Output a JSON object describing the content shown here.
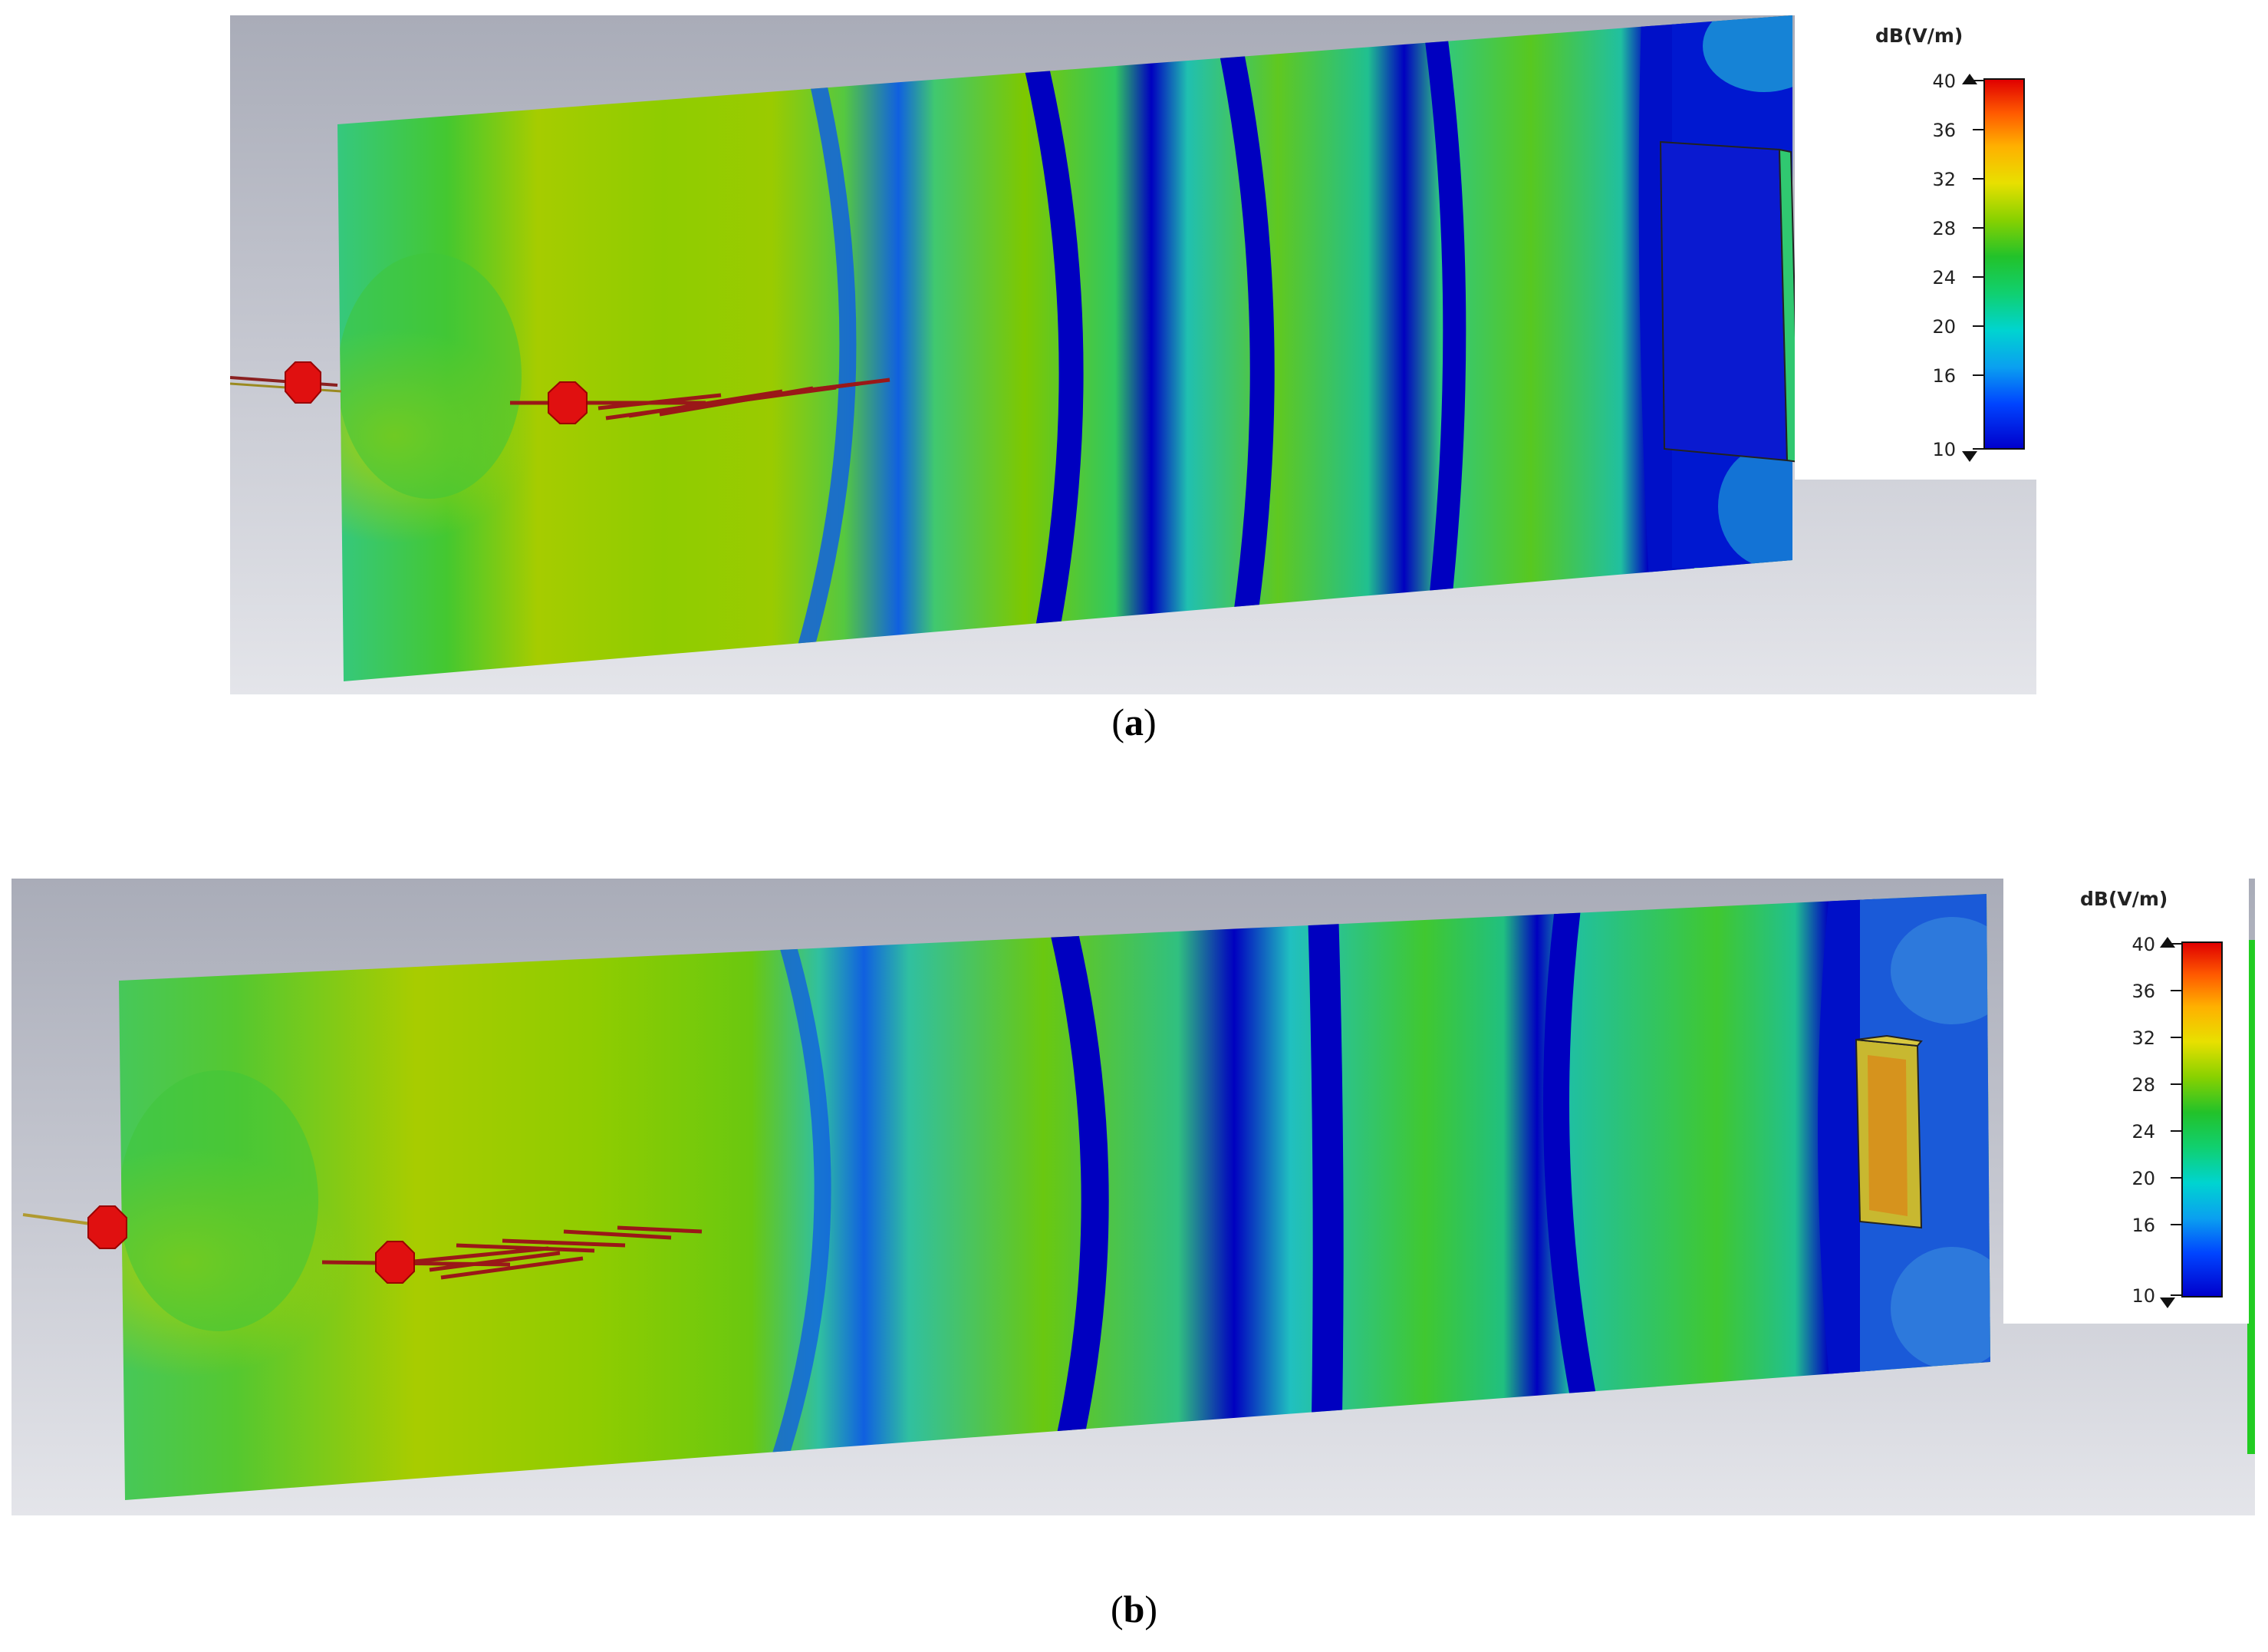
{
  "panels": [
    {
      "id": "a",
      "caption_label": "a",
      "legend": {
        "unit": "dB(V/m)",
        "ticks": [
          "40",
          "36",
          "32",
          "28",
          "24",
          "20",
          "16",
          "10"
        ]
      }
    },
    {
      "id": "b",
      "caption_label": "b",
      "legend": {
        "unit": "dB(V/m)",
        "ticks": [
          "40",
          "36",
          "32",
          "28",
          "24",
          "20",
          "16",
          "10"
        ]
      }
    }
  ],
  "colors": {
    "background_gray": "#b9bcc6",
    "field_blue": "#0000cc",
    "field_cyan": "#22c8c8",
    "field_green": "#33cc22",
    "field_yellowgreen": "#a8cc00",
    "antenna_red": "#e01010"
  }
}
